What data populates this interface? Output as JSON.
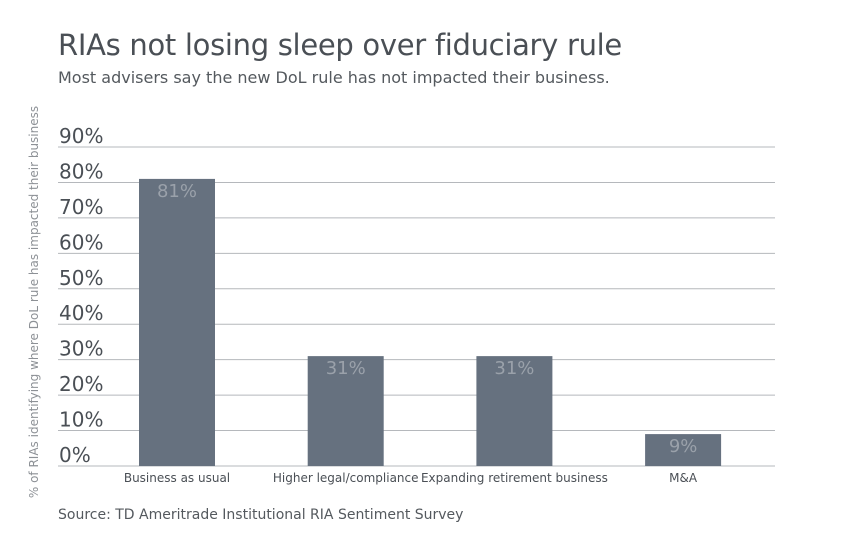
{
  "title": "RIAs not losing sleep over fiduciary rule",
  "subtitle": "Most advisers say the new DoL rule has not impacted their business.",
  "source": "Source: TD Ameritrade Institutional RIA Sentiment Survey",
  "chart_data": {
    "type": "bar",
    "categories": [
      "Business as usual",
      "Higher legal/compliance",
      "Expanding retirement business",
      "M&A"
    ],
    "values": [
      81,
      31,
      31,
      9
    ],
    "value_labels": [
      "81%",
      "31%",
      "31%",
      "9%"
    ],
    "ylabel": "% of RIAs identifying where DoL rule has impacted their business",
    "ylim": [
      0,
      90
    ],
    "yticks": [
      0,
      10,
      20,
      30,
      40,
      50,
      60,
      70,
      80,
      90
    ],
    "ytick_labels": [
      "0%",
      "10%",
      "20%",
      "30%",
      "40%",
      "50%",
      "60%",
      "70%",
      "80%",
      "90%"
    ],
    "grid": true,
    "bar_color": "#66717f",
    "value_label_color": "#9aa1aa",
    "grid_color": "#b5b8bc",
    "text_color": "#4a4f55"
  }
}
